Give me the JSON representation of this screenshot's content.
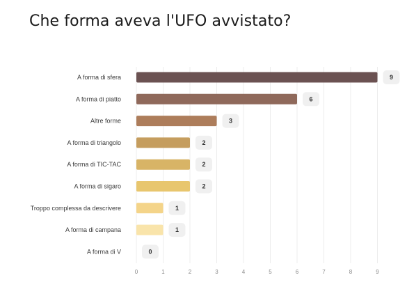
{
  "title": "Che forma aveva l'UFO avvistato?",
  "chart_data": {
    "type": "bar",
    "orientation": "horizontal",
    "title": "Che forma aveva l'UFO avvistato?",
    "categories": [
      "A forma di sfera",
      "A forma di piatto",
      "Altre forme",
      "A forma di triangolo",
      "A forma di TIC-TAC",
      "A forma di sigaro",
      "Troppo complessa da descrivere",
      "A forma di campana",
      "A forma di V"
    ],
    "values": [
      9,
      6,
      3,
      2,
      2,
      2,
      1,
      1,
      0
    ],
    "colors": [
      "#6b5252",
      "#8f695b",
      "#ad7d5b",
      "#c59d5e",
      "#d8b466",
      "#e8c66e",
      "#f4d489",
      "#f9e4aa",
      "#f9e4aa"
    ],
    "xticks": [
      0,
      1,
      2,
      3,
      4,
      5,
      6,
      7,
      8,
      9
    ],
    "xlim": [
      0,
      9
    ],
    "grid": true,
    "xlabel": "",
    "ylabel": ""
  }
}
